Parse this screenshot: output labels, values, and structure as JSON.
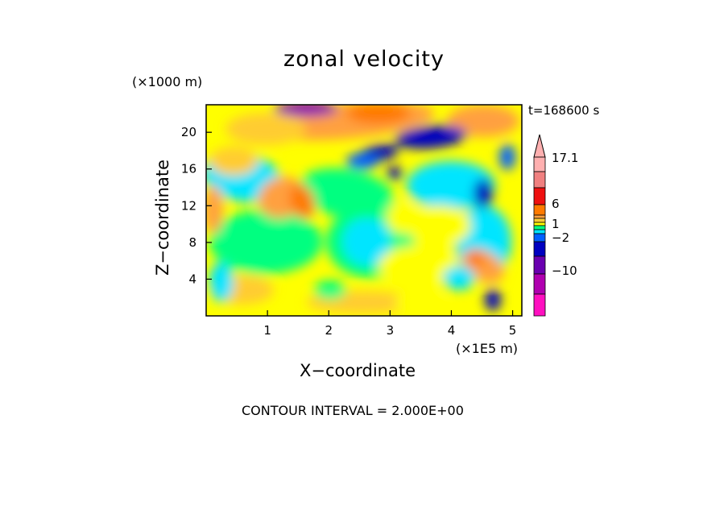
{
  "chart_data": {
    "type": "heatmap",
    "title": "zonal velocity",
    "xlabel": "X−coordinate",
    "ylabel": "Z−coordinate",
    "x_unit_label": "(×1E5 m)",
    "z_unit_label": "(×1000 m)",
    "time_label": "t=168600 s",
    "contour_interval_label": "CONTOUR INTERVAL = 2.000E+00",
    "xlim": [
      0,
      5.15
    ],
    "ylim": [
      0,
      23
    ],
    "x_ticks": [
      "1",
      "2",
      "3",
      "4",
      "5"
    ],
    "y_ticks": [
      "4",
      "8",
      "12",
      "16",
      "20"
    ],
    "colorbar": {
      "labels": [
        "17.1",
        "6",
        "1",
        "−2",
        "−10"
      ],
      "colors": [
        "#ffb0b0",
        "#f08080",
        "#ee1010",
        "#ff7a00",
        "#ffa040",
        "#ffcc33",
        "#ffff00",
        "#00ff80",
        "#00e5ff",
        "#0060ff",
        "#0000c0",
        "#6a00b0",
        "#b000b0",
        "#ff10c0"
      ]
    },
    "features": [
      {
        "x": 1.6,
        "z": 12.5,
        "value": 6
      },
      {
        "x": 3.5,
        "z": 18.5,
        "value": -10
      },
      {
        "x": 2.8,
        "z": 19.5,
        "value": -10
      },
      {
        "x": 1.3,
        "z": 22.5,
        "value": -12
      },
      {
        "x": 2.5,
        "z": 21,
        "value": 8
      },
      {
        "x": 4.4,
        "z": 5.5,
        "value": 7
      },
      {
        "x": 2.7,
        "z": 8,
        "value": -1
      },
      {
        "x": 2.4,
        "z": 12,
        "value": 0
      },
      {
        "x": 0.5,
        "z": 4,
        "value": 1
      }
    ]
  }
}
